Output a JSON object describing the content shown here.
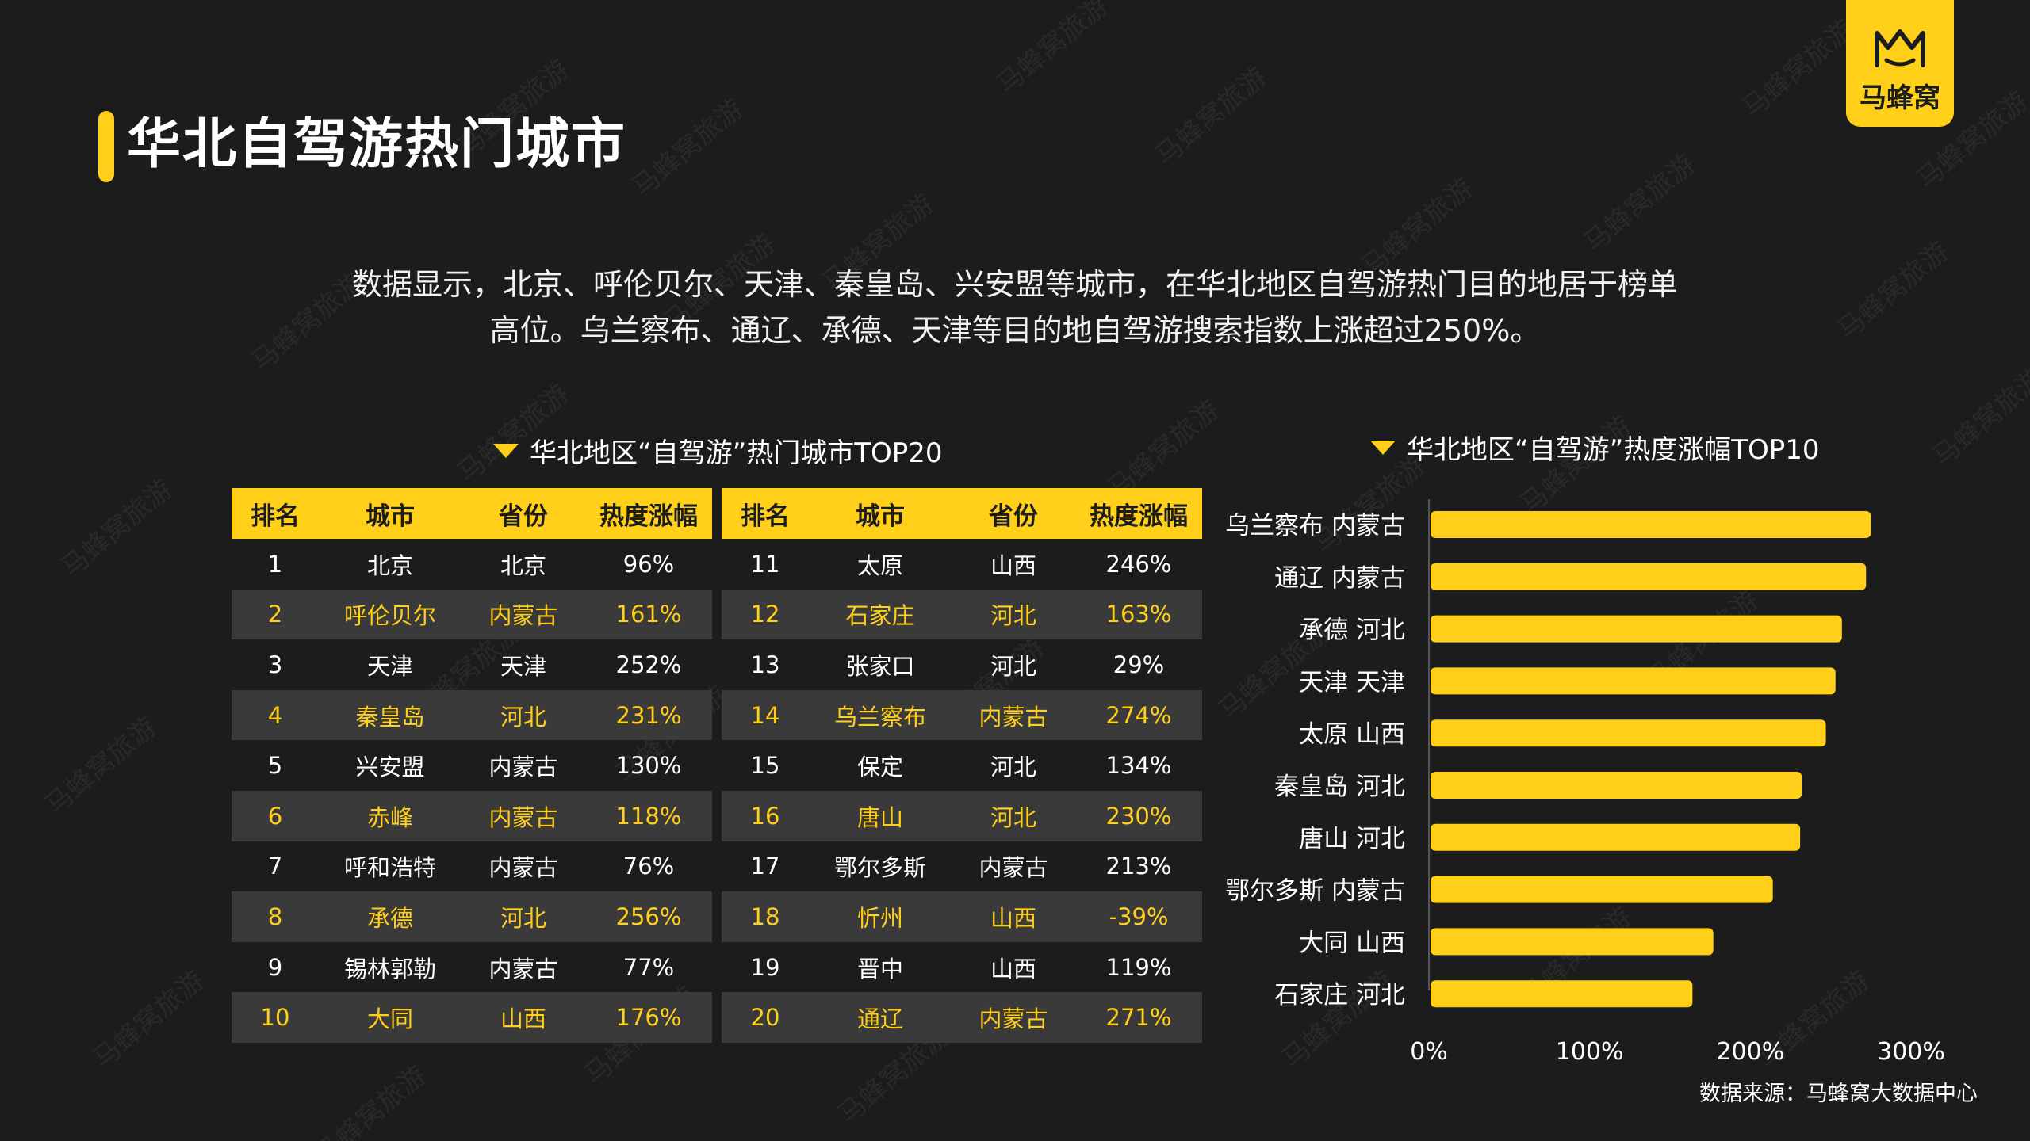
{
  "title": "华北自驾游热门城市",
  "logo_text": "马蜂窝",
  "summary": {
    "line1": "数据显示，北京、呼伦贝尔、天津、秦皇岛、兴安盟等城市，在华北地区自驾游热门目的地居于榜单",
    "line2": "高位。乌兰察布、通辽、承德、天津等目的地自驾游搜索指数上涨超过250%。"
  },
  "table_section_title": "华北地区“自驾游”热门城市TOP20",
  "bar_section_title": "华北地区“自驾游”热度涨幅TOP10",
  "source": "数据来源：马蜂窝大数据中心",
  "watermark": "马蜂窝旅游",
  "colors": {
    "accent": "#ffcf1a",
    "background": "#1c1c1c",
    "row_alt": "#3a3a3a"
  },
  "chart_data": [
    {
      "type": "table",
      "title": "华北地区“自驾游”热门城市TOP20",
      "columns": [
        "排名",
        "城市",
        "省份",
        "热度涨幅"
      ],
      "rows": [
        [
          "1",
          "北京",
          "北京",
          "96%"
        ],
        [
          "2",
          "呼伦贝尔",
          "内蒙古",
          "161%"
        ],
        [
          "3",
          "天津",
          "天津",
          "252%"
        ],
        [
          "4",
          "秦皇岛",
          "河北",
          "231%"
        ],
        [
          "5",
          "兴安盟",
          "内蒙古",
          "130%"
        ],
        [
          "6",
          "赤峰",
          "内蒙古",
          "118%"
        ],
        [
          "7",
          "呼和浩特",
          "内蒙古",
          "76%"
        ],
        [
          "8",
          "承德",
          "河北",
          "256%"
        ],
        [
          "9",
          "锡林郭勒",
          "内蒙古",
          "77%"
        ],
        [
          "10",
          "大同",
          "山西",
          "176%"
        ],
        [
          "11",
          "太原",
          "山西",
          "246%"
        ],
        [
          "12",
          "石家庄",
          "河北",
          "163%"
        ],
        [
          "13",
          "张家口",
          "河北",
          "29%"
        ],
        [
          "14",
          "乌兰察布",
          "内蒙古",
          "274%"
        ],
        [
          "15",
          "保定",
          "河北",
          "134%"
        ],
        [
          "16",
          "唐山",
          "河北",
          "230%"
        ],
        [
          "17",
          "鄂尔多斯",
          "内蒙古",
          "213%"
        ],
        [
          "18",
          "忻州",
          "山西",
          "-39%"
        ],
        [
          "19",
          "晋中",
          "山西",
          "119%"
        ],
        [
          "20",
          "通辽",
          "内蒙古",
          "271%"
        ]
      ]
    },
    {
      "type": "bar",
      "orientation": "horizontal",
      "title": "华北地区“自驾游”热度涨幅TOP10",
      "categories": [
        "乌兰察布 内蒙古",
        "通辽 内蒙古",
        "承德  河北",
        "天津  天津",
        "太原  山西",
        "秦皇岛  河北",
        "唐山  河北",
        "鄂尔多斯 内蒙古",
        "大同  山西",
        "石家庄  河北"
      ],
      "values": [
        274,
        271,
        256,
        252,
        246,
        231,
        230,
        213,
        176,
        163
      ],
      "unit": "%",
      "xlim": [
        0,
        300
      ],
      "xticks": [
        "0%",
        "100%",
        "200%",
        "300%"
      ],
      "grid": false,
      "color": "#ffcf1a"
    }
  ]
}
